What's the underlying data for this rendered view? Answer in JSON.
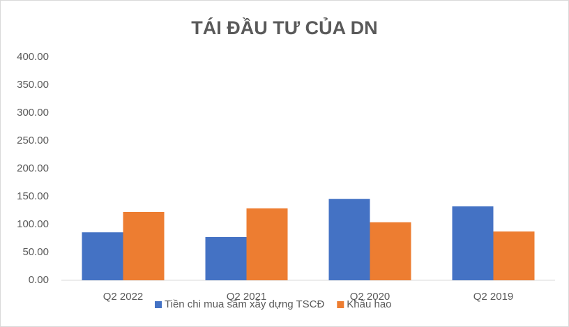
{
  "chart_data": {
    "type": "bar",
    "title": "TÁI ĐẦU TƯ CỦA DN",
    "categories": [
      "Q2 2022",
      "Q2 2021",
      "Q2 2020",
      "Q2 2019"
    ],
    "series": [
      {
        "name": "Tiền chi mua sắm xây dựng TSCĐ",
        "color": "#4472c4",
        "values": [
          86,
          77.5,
          146,
          132.5
        ]
      },
      {
        "name": "Khấu hao",
        "color": "#ed7d31",
        "values": [
          122.5,
          129,
          104,
          87.5
        ]
      }
    ],
    "ylim": [
      0,
      400
    ],
    "yticks": [
      {
        "value": 0,
        "label": "0.00"
      },
      {
        "value": 50,
        "label": "50.00"
      },
      {
        "value": 100,
        "label": "100.00"
      },
      {
        "value": 150,
        "label": "150.00"
      },
      {
        "value": 200,
        "label": "200.00"
      },
      {
        "value": 250,
        "label": "250.00"
      },
      {
        "value": 300,
        "label": "300.00"
      },
      {
        "value": 350,
        "label": "350.00"
      },
      {
        "value": 400,
        "label": "400.00"
      }
    ],
    "grid": false,
    "legend": "bottom"
  }
}
